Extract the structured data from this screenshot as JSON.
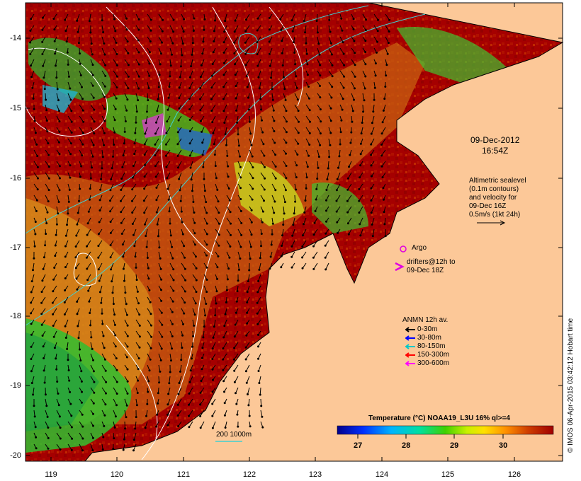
{
  "map": {
    "y_ticks": [
      "-14",
      "-15",
      "-16",
      "-17",
      "-18",
      "-19",
      "-20"
    ],
    "x_ticks": [
      "119",
      "120",
      "121",
      "122",
      "123",
      "124",
      "125",
      "126"
    ],
    "date_line1": "09-Dec-2012",
    "date_line2": "16:54Z",
    "altimetry_text": [
      "Altimetric sealevel",
      "(0.1m contours)",
      "and velocity for",
      "09-Dec 16Z",
      "0.5m/s (1kt 24h)"
    ],
    "argo_label": "Argo",
    "drifters_label_1": "drifters@12h to",
    "drifters_label_2": "09-Dec 18Z",
    "anmn_title": "ANMN 12h av.",
    "anmn_items": [
      {
        "label": "0-30m",
        "color": "#000000"
      },
      {
        "label": "30-80m",
        "color": "#0000ff"
      },
      {
        "label": "80-150m",
        "color": "#00c8c8"
      },
      {
        "label": "150-300m",
        "color": "#ff0000"
      },
      {
        "label": "300-600m",
        "color": "#ff00ff"
      }
    ],
    "depth_label": "200  1000m",
    "colorbar_title": "Temperature (°C) NOAA19_L3U 16% ql>=4",
    "colorbar_ticks": [
      "27",
      "28",
      "29",
      "30"
    ],
    "credit": "© IMOS 06-Apr-2015 03:42:12 Hobart time",
    "colors": {
      "land": "#fcc898",
      "warm": "#a00000",
      "ocean_mid": "#d07010"
    }
  }
}
